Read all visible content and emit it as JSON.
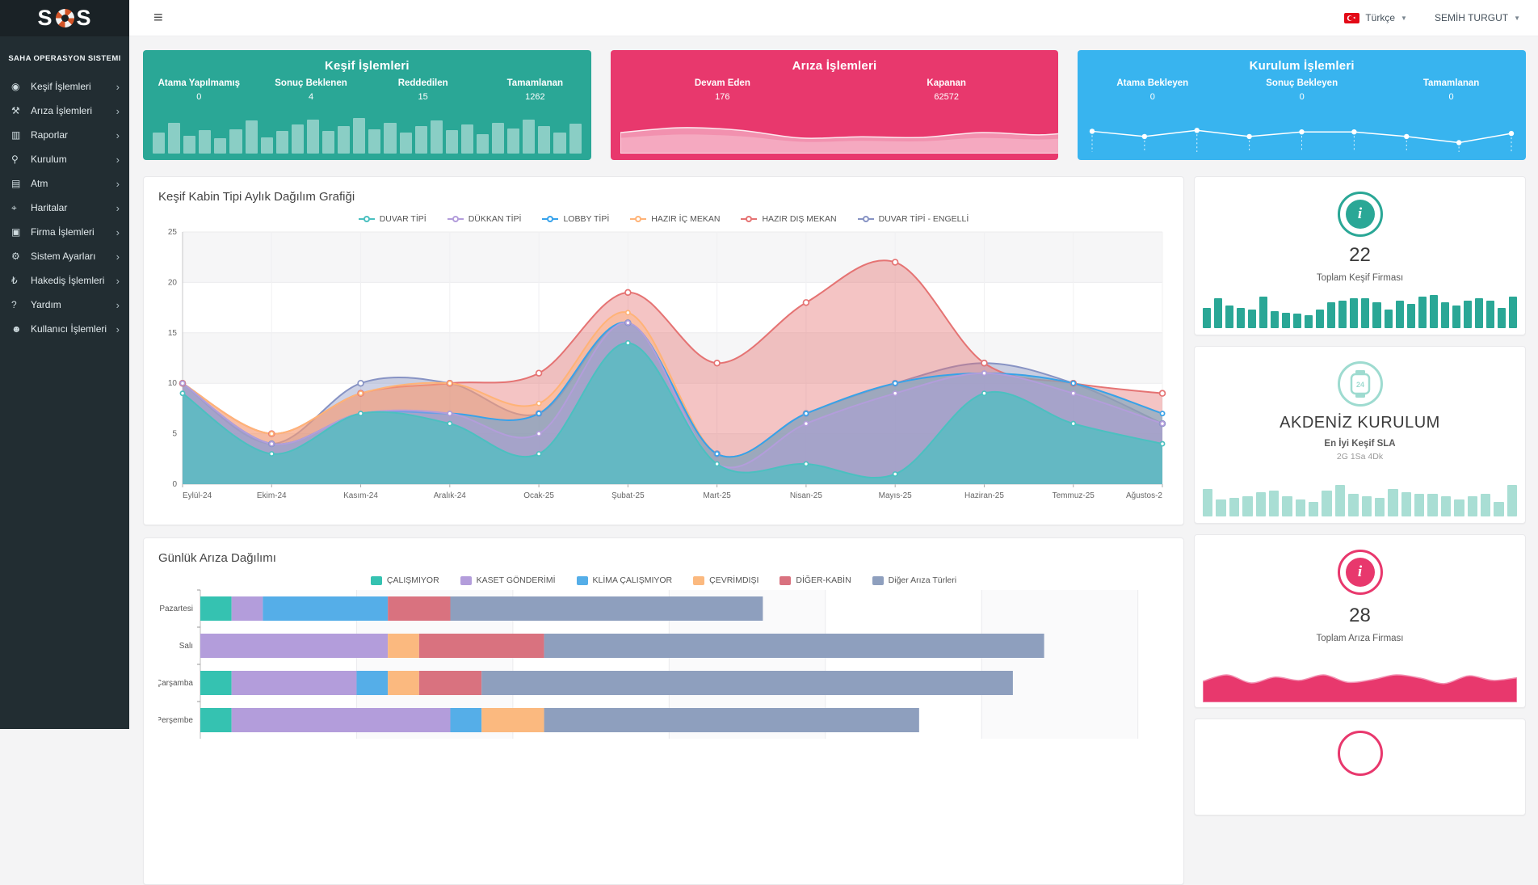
{
  "topbar": {
    "language": "Türkçe",
    "user": "SEMİH TURGUT"
  },
  "sidebar": {
    "logo_text": "SOS",
    "subtitle": "SAHA OPERASYON SISTEMI",
    "items": [
      {
        "label": "Keşif İşlemleri",
        "icon": "eye-icon",
        "glyph": "◉"
      },
      {
        "label": "Arıza İşlemleri",
        "icon": "wrench-icon",
        "glyph": "⚒"
      },
      {
        "label": "Raporlar",
        "icon": "bar-chart-icon",
        "glyph": "▥"
      },
      {
        "label": "Kurulum",
        "icon": "key-icon",
        "glyph": "⚲"
      },
      {
        "label": "Atm",
        "icon": "credit-card-icon",
        "glyph": "▤"
      },
      {
        "label": "Haritalar",
        "icon": "map-marker-icon",
        "glyph": "⌖"
      },
      {
        "label": "Firma İşlemleri",
        "icon": "briefcase-icon",
        "glyph": "▣"
      },
      {
        "label": "Sistem Ayarları",
        "icon": "gear-icon",
        "glyph": "⚙"
      },
      {
        "label": "Hakediş İşlemleri",
        "icon": "lira-icon",
        "glyph": "₺"
      },
      {
        "label": "Yardım",
        "icon": "question-icon",
        "glyph": "?"
      },
      {
        "label": "Kullanıcı İşlemleri",
        "icon": "users-icon",
        "glyph": "☻"
      }
    ]
  },
  "stat_cards": [
    {
      "title": "Keşif İşlemleri",
      "color": "#2aa796",
      "spark_type": "bars",
      "stats": [
        {
          "label": "Atama Yapılmamış",
          "value": "0"
        },
        {
          "label": "Sonuç Beklenen",
          "value": "4"
        },
        {
          "label": "Reddedilen",
          "value": "15"
        },
        {
          "label": "Tamamlanan",
          "value": "1262"
        }
      ],
      "spark_values": [
        55,
        80,
        45,
        60,
        40,
        62,
        85,
        42,
        58,
        75,
        88,
        58,
        70,
        92,
        62,
        80,
        55,
        70,
        85,
        60,
        75,
        50,
        80,
        65,
        88,
        70,
        55,
        78
      ]
    },
    {
      "title": "Arıza İşlemleri",
      "color": "#e8386d",
      "spark_type": "wave",
      "stats": [
        {
          "label": "Devam Eden",
          "value": "176"
        },
        {
          "label": "Kapanan",
          "value": "62572"
        }
      ],
      "spark_values": [
        55,
        70,
        62,
        38,
        42,
        40,
        55,
        48,
        62,
        42,
        58,
        50
      ]
    },
    {
      "title": "Kurulum İşlemleri",
      "color": "#38b4ef",
      "spark_type": "line",
      "stats": [
        {
          "label": "Atama Bekleyen",
          "value": "0"
        },
        {
          "label": "Sonuç Bekleyen",
          "value": "0"
        },
        {
          "label": "Tamamlanan",
          "value": "0"
        }
      ],
      "spark_values": [
        62,
        45,
        65,
        45,
        60,
        60,
        45,
        25,
        55
      ]
    }
  ],
  "panels": {
    "monthly_title": "Keşif Kabin Tipi Aylık Dağılım Grafiği",
    "daily_title": "Günlük Arıza Dağılımı"
  },
  "side_cards": [
    {
      "icon": "info-icon",
      "accent": "#2aa796",
      "value": "22",
      "label": "Toplam Keşif Firması",
      "spark_type": "bars",
      "spark_color": "#2aa796",
      "spark_values": [
        55,
        80,
        60,
        55,
        50,
        85,
        45,
        42,
        40,
        35,
        50,
        70,
        75,
        80,
        80,
        70,
        50,
        75,
        65,
        85,
        90,
        70,
        60,
        75,
        80,
        75,
        55,
        85
      ]
    },
    {
      "icon": "watch-icon",
      "accent": "#9edbd0",
      "value": "AKDENİZ KURULUM",
      "label": "En İyi Keşif SLA",
      "sublabel": "2G 1Sa 4Dk",
      "spark_type": "bars",
      "spark_color": "#a9ded4",
      "spark_values": [
        75,
        45,
        50,
        55,
        65,
        70,
        55,
        45,
        40,
        70,
        85,
        60,
        55,
        50,
        75,
        65,
        60,
        60,
        55,
        45,
        55,
        60,
        40,
        85
      ]
    },
    {
      "icon": "info-icon",
      "accent": "#e8386d",
      "value": "28",
      "label": "Toplam Arıza Firması",
      "spark_type": "wave",
      "spark_color": "#e8386d",
      "spark_values": [
        55,
        75,
        50,
        68,
        58,
        75,
        52,
        60,
        75,
        65,
        48,
        72,
        58,
        66
      ]
    }
  ],
  "chart_data": [
    {
      "type": "area",
      "title": "Keşif Kabin Tipi Aylık Dağılım Grafiği",
      "categories": [
        "Eylül-24",
        "Ekim-24",
        "Kasım-24",
        "Aralık-24",
        "Ocak-25",
        "Şubat-25",
        "Mart-25",
        "Nisan-25",
        "Mayıs-25",
        "Haziran-25",
        "Temmuz-25",
        "Ağustos-2"
      ],
      "ylim": [
        0,
        25
      ],
      "yticks": [
        0,
        5,
        10,
        15,
        20,
        25
      ],
      "grid": true,
      "legend_position": "top",
      "series": [
        {
          "name": "DUVAR TİPİ",
          "color": "#4bc0c0",
          "values": [
            9,
            3,
            7,
            6,
            3,
            14,
            2,
            2,
            1,
            9,
            6,
            4
          ]
        },
        {
          "name": "DÜKKAN TİPİ",
          "color": "#b39ddb",
          "values": [
            10,
            4,
            7,
            7,
            5,
            16,
            2,
            6,
            9,
            11,
            9,
            6
          ]
        },
        {
          "name": "LOBBY TİPİ",
          "color": "#36a2eb",
          "values": [
            10,
            4,
            7,
            7,
            7,
            16,
            3,
            7,
            10,
            11,
            10,
            7
          ]
        },
        {
          "name": "HAZIR İÇ MEKAN",
          "color": "#ffb377",
          "values": [
            10,
            5,
            9,
            10,
            8,
            17,
            3,
            7,
            10,
            11,
            10,
            7
          ]
        },
        {
          "name": "HAZIR DIŞ MEKAN",
          "color": "#e57373",
          "values": [
            10,
            5,
            9,
            10,
            11,
            19,
            12,
            18,
            22,
            12,
            10,
            9
          ]
        },
        {
          "name": "DUVAR TİPİ - ENGELLİ",
          "color": "#8793c4",
          "values": [
            10,
            4,
            10,
            10,
            7,
            16,
            3,
            7,
            10,
            12,
            10,
            6
          ]
        }
      ]
    },
    {
      "type": "stacked-bar-horizontal",
      "title": "Günlük Arıza Dağılımı",
      "categories": [
        "Pazartesi",
        "Salı",
        "Çarşamba",
        "Perşembe"
      ],
      "xlim": [
        0,
        305
      ],
      "xgrid_step": 50,
      "grid": true,
      "legend_position": "top",
      "series": [
        {
          "name": "ÇALIŞMIYOR",
          "color": "#35c2b1",
          "values": [
            10,
            0,
            10,
            10
          ]
        },
        {
          "name": "KASET GÖNDERİMİ",
          "color": "#b39ddb",
          "values": [
            10,
            60,
            40,
            70
          ]
        },
        {
          "name": "KLİMA ÇALIŞMIYOR",
          "color": "#55aee8",
          "values": [
            40,
            0,
            10,
            10
          ]
        },
        {
          "name": "ÇEVRİMDIŞI",
          "color": "#fbb97f",
          "values": [
            0,
            10,
            10,
            20
          ]
        },
        {
          "name": "DİĞER-KABİN",
          "color": "#d9727f",
          "values": [
            20,
            40,
            20,
            0
          ]
        },
        {
          "name": "Diğer Arıza Türleri",
          "color": "#8e9fbe",
          "values": [
            100,
            160,
            170,
            120
          ]
        }
      ]
    }
  ]
}
